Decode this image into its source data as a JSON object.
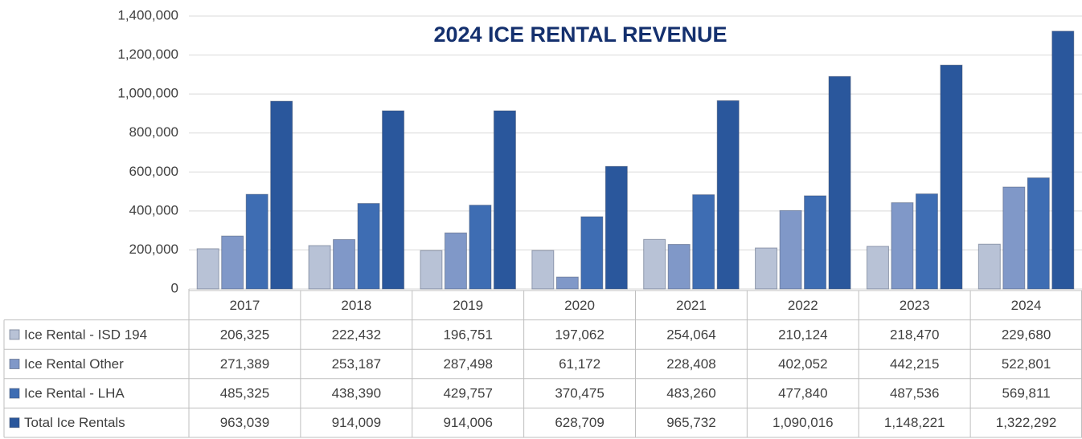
{
  "chart_data": {
    "type": "bar",
    "title": "2024 ICE RENTAL REVENUE",
    "categories": [
      "2017",
      "2018",
      "2019",
      "2020",
      "2021",
      "2022",
      "2023",
      "2024"
    ],
    "series": [
      {
        "name": "Ice Rental - ISD 194",
        "color": "#b8c2d6",
        "values": [
          206325,
          222432,
          196751,
          197062,
          254064,
          210124,
          218470,
          229680
        ],
        "value_labels": [
          "206,325",
          "222,432",
          "196,751",
          "197,062",
          "254,064",
          "210,124",
          "218,470",
          "229,680"
        ]
      },
      {
        "name": "Ice Rental Other",
        "color": "#8098c8",
        "values": [
          271389,
          253187,
          287498,
          61172,
          228408,
          402052,
          442215,
          522801
        ],
        "value_labels": [
          "271,389",
          "253,187",
          "287,498",
          "61,172",
          "228,408",
          "402,052",
          "442,215",
          "522,801"
        ]
      },
      {
        "name": "Ice Rental - LHA",
        "color": "#3e6db3",
        "values": [
          485325,
          438390,
          429757,
          370475,
          483260,
          477840,
          487536,
          569811
        ],
        "value_labels": [
          "485,325",
          "438,390",
          "429,757",
          "370,475",
          "483,260",
          "477,840",
          "487,536",
          "569,811"
        ]
      },
      {
        "name": "Total Ice Rentals",
        "color": "#2a579c",
        "values": [
          963039,
          914009,
          914006,
          628709,
          965732,
          1090016,
          1148221,
          1322292
        ],
        "value_labels": [
          "963,039",
          "914,009",
          "914,006",
          "628,709",
          "965,732",
          "1,090,016",
          "1,148,221",
          "1,322,292"
        ]
      }
    ],
    "ylim": [
      0,
      1400000
    ],
    "yticks": [
      0,
      {
        "value": 200000,
        "label": "200,000"
      },
      {
        "value": 400000,
        "label": "400,000"
      },
      {
        "value": 600000,
        "label": "600,000"
      },
      {
        "value": 800000,
        "label": "800,000"
      },
      {
        "value": 1000000,
        "label": "1,000,000"
      },
      {
        "value": 1200000,
        "label": "1,200,000"
      },
      {
        "value": 1400000,
        "label": "1,400,000"
      }
    ],
    "grid": true
  }
}
